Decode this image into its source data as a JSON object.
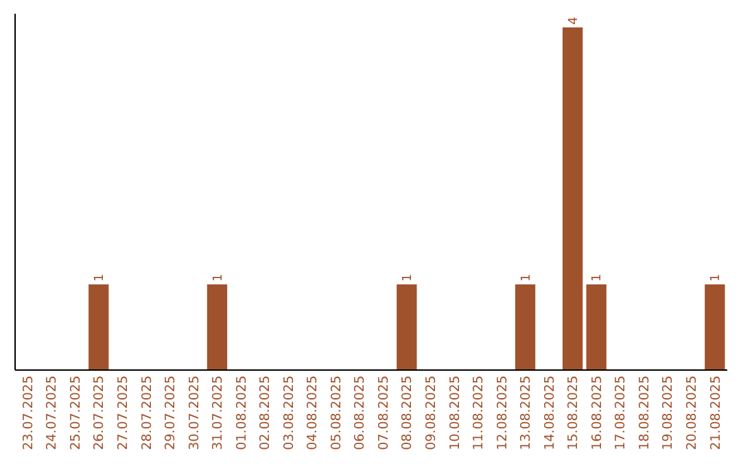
{
  "chart_data": {
    "type": "bar",
    "categories": [
      "23.07.2025",
      "24.07.2025",
      "25.07.2025",
      "26.07.2025",
      "27.07.2025",
      "28.07.2025",
      "29.07.2025",
      "30.07.2025",
      "31.07.2025",
      "01.08.2025",
      "02.08.2025",
      "03.08.2025",
      "04.08.2025",
      "05.08.2025",
      "06.08.2025",
      "07.08.2025",
      "08.08.2025",
      "09.08.2025",
      "10.08.2025",
      "11.08.2025",
      "12.08.2025",
      "13.08.2025",
      "14.08.2025",
      "15.08.2025",
      "16.08.2025",
      "17.08.2025",
      "18.08.2025",
      "19.08.2025",
      "20.08.2025",
      "21.08.2025"
    ],
    "values": [
      0,
      0,
      0,
      1,
      0,
      0,
      0,
      0,
      1,
      0,
      0,
      0,
      0,
      0,
      0,
      0,
      1,
      0,
      0,
      0,
      0,
      1,
      0,
      4,
      1,
      0,
      0,
      0,
      0,
      1
    ],
    "value_labels": [
      null,
      null,
      null,
      "1",
      null,
      null,
      null,
      null,
      "1",
      null,
      null,
      null,
      null,
      null,
      null,
      null,
      "1",
      null,
      null,
      null,
      null,
      "1",
      null,
      "4",
      "1",
      null,
      null,
      null,
      null,
      "1"
    ],
    "color": "#a0522d",
    "ylim": [
      0,
      4.16
    ],
    "tick_labels": "x"
  }
}
